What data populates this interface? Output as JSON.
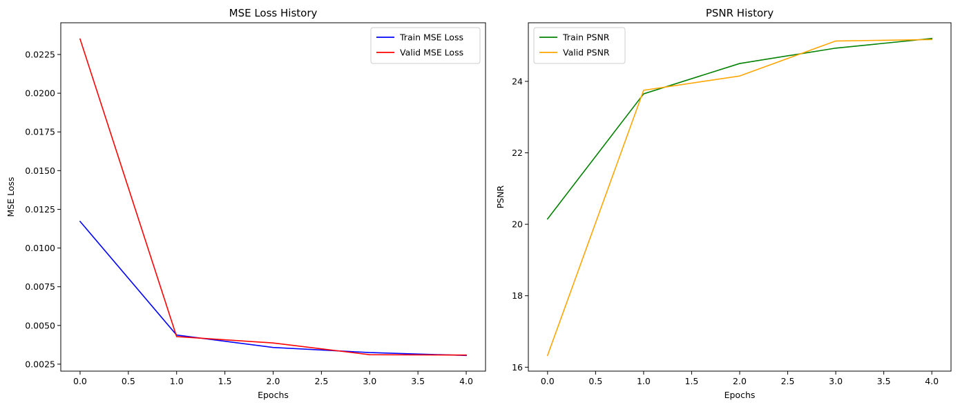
{
  "chart_data": [
    {
      "type": "line",
      "title": "MSE Loss History",
      "xlabel": "Epochs",
      "ylabel": "MSE Loss",
      "x": [
        0,
        1,
        2,
        3,
        4
      ],
      "xlim": [
        -0.2,
        4.2
      ],
      "ylim": [
        0.00205,
        0.02455
      ],
      "xticks": [
        0.0,
        0.5,
        1.0,
        1.5,
        2.0,
        2.5,
        3.0,
        3.5,
        4.0
      ],
      "xtick_labels": [
        "0.0",
        "0.5",
        "1.0",
        "1.5",
        "2.0",
        "2.5",
        "3.0",
        "3.5",
        "4.0"
      ],
      "yticks": [
        0.0025,
        0.005,
        0.0075,
        0.01,
        0.0125,
        0.015,
        0.0175,
        0.02,
        0.0225
      ],
      "ytick_labels": [
        "0.0025",
        "0.0050",
        "0.0075",
        "0.0100",
        "0.0125",
        "0.0150",
        "0.0175",
        "0.0200",
        "0.0225"
      ],
      "grid": false,
      "legend": "top-right",
      "series": [
        {
          "name": "Train MSE Loss",
          "color": "#0000ff",
          "values": [
            0.01172,
            0.00438,
            0.00358,
            0.00325,
            0.00306
          ]
        },
        {
          "name": "Valid MSE Loss",
          "color": "#ff0000",
          "values": [
            0.0235,
            0.00428,
            0.00387,
            0.00311,
            0.00309
          ]
        }
      ]
    },
    {
      "type": "line",
      "title": "PSNR History",
      "xlabel": "Epochs",
      "ylabel": "PSNR",
      "x": [
        0,
        1,
        2,
        3,
        4
      ],
      "xlim": [
        -0.2,
        4.2
      ],
      "ylim": [
        15.89,
        25.64
      ],
      "xticks": [
        0.0,
        0.5,
        1.0,
        1.5,
        2.0,
        2.5,
        3.0,
        3.5,
        4.0
      ],
      "xtick_labels": [
        "0.0",
        "0.5",
        "1.0",
        "1.5",
        "2.0",
        "2.5",
        "3.0",
        "3.5",
        "4.0"
      ],
      "yticks": [
        16,
        18,
        20,
        22,
        24
      ],
      "ytick_labels": [
        "16",
        "18",
        "20",
        "22",
        "24"
      ],
      "grid": false,
      "legend": "top-left",
      "series": [
        {
          "name": "Train PSNR",
          "color": "#008000",
          "values": [
            20.15,
            23.65,
            24.5,
            24.93,
            25.2
          ]
        },
        {
          "name": "Valid PSNR",
          "color": "#ffa500",
          "values": [
            16.33,
            23.75,
            24.15,
            25.13,
            25.17
          ]
        }
      ]
    }
  ]
}
